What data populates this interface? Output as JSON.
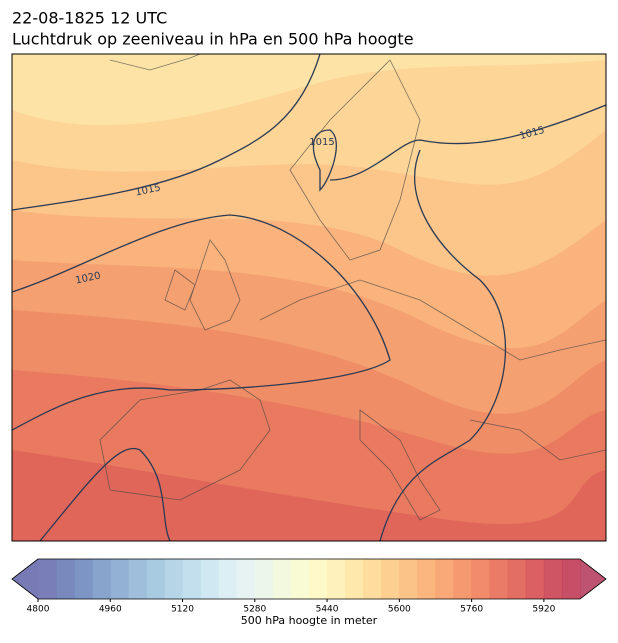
{
  "header": {
    "date": "22-08-1825 12 UTC",
    "title": "Luchtdruk op zeeniveau in hPa en 500 hPa hoogte"
  },
  "map": {
    "contour_labels": [
      "1015",
      "1015",
      "1015",
      "1020"
    ]
  },
  "colorbar": {
    "label": "500 hPa hoogte in meter",
    "range": [
      4800,
      6000
    ],
    "ticks": [
      4800,
      4960,
      5120,
      5280,
      5440,
      5600,
      5760,
      5920
    ],
    "colors": [
      "#6a6fb0",
      "#6a7cb7",
      "#6f8abf",
      "#7b99c7",
      "#87a8cf",
      "#93b7d8",
      "#a0c5df",
      "#aed2e6",
      "#bcdcec",
      "#cae5f0",
      "#d8edf3",
      "#e3f2f1",
      "#eaf5e8",
      "#f1f8dc",
      "#f8fbd0",
      "#fff8c4",
      "#fff0b5",
      "#fee5a2",
      "#fed993",
      "#fdcb86",
      "#fcbd7b",
      "#fbae72",
      "#f89e69",
      "#f48e61",
      "#ef7e5b",
      "#e86e56",
      "#e05e53",
      "#d64f52",
      "#cb4352",
      "#c03b55"
    ],
    "under_color": "#5f63a8",
    "over_color": "#b13458"
  }
}
